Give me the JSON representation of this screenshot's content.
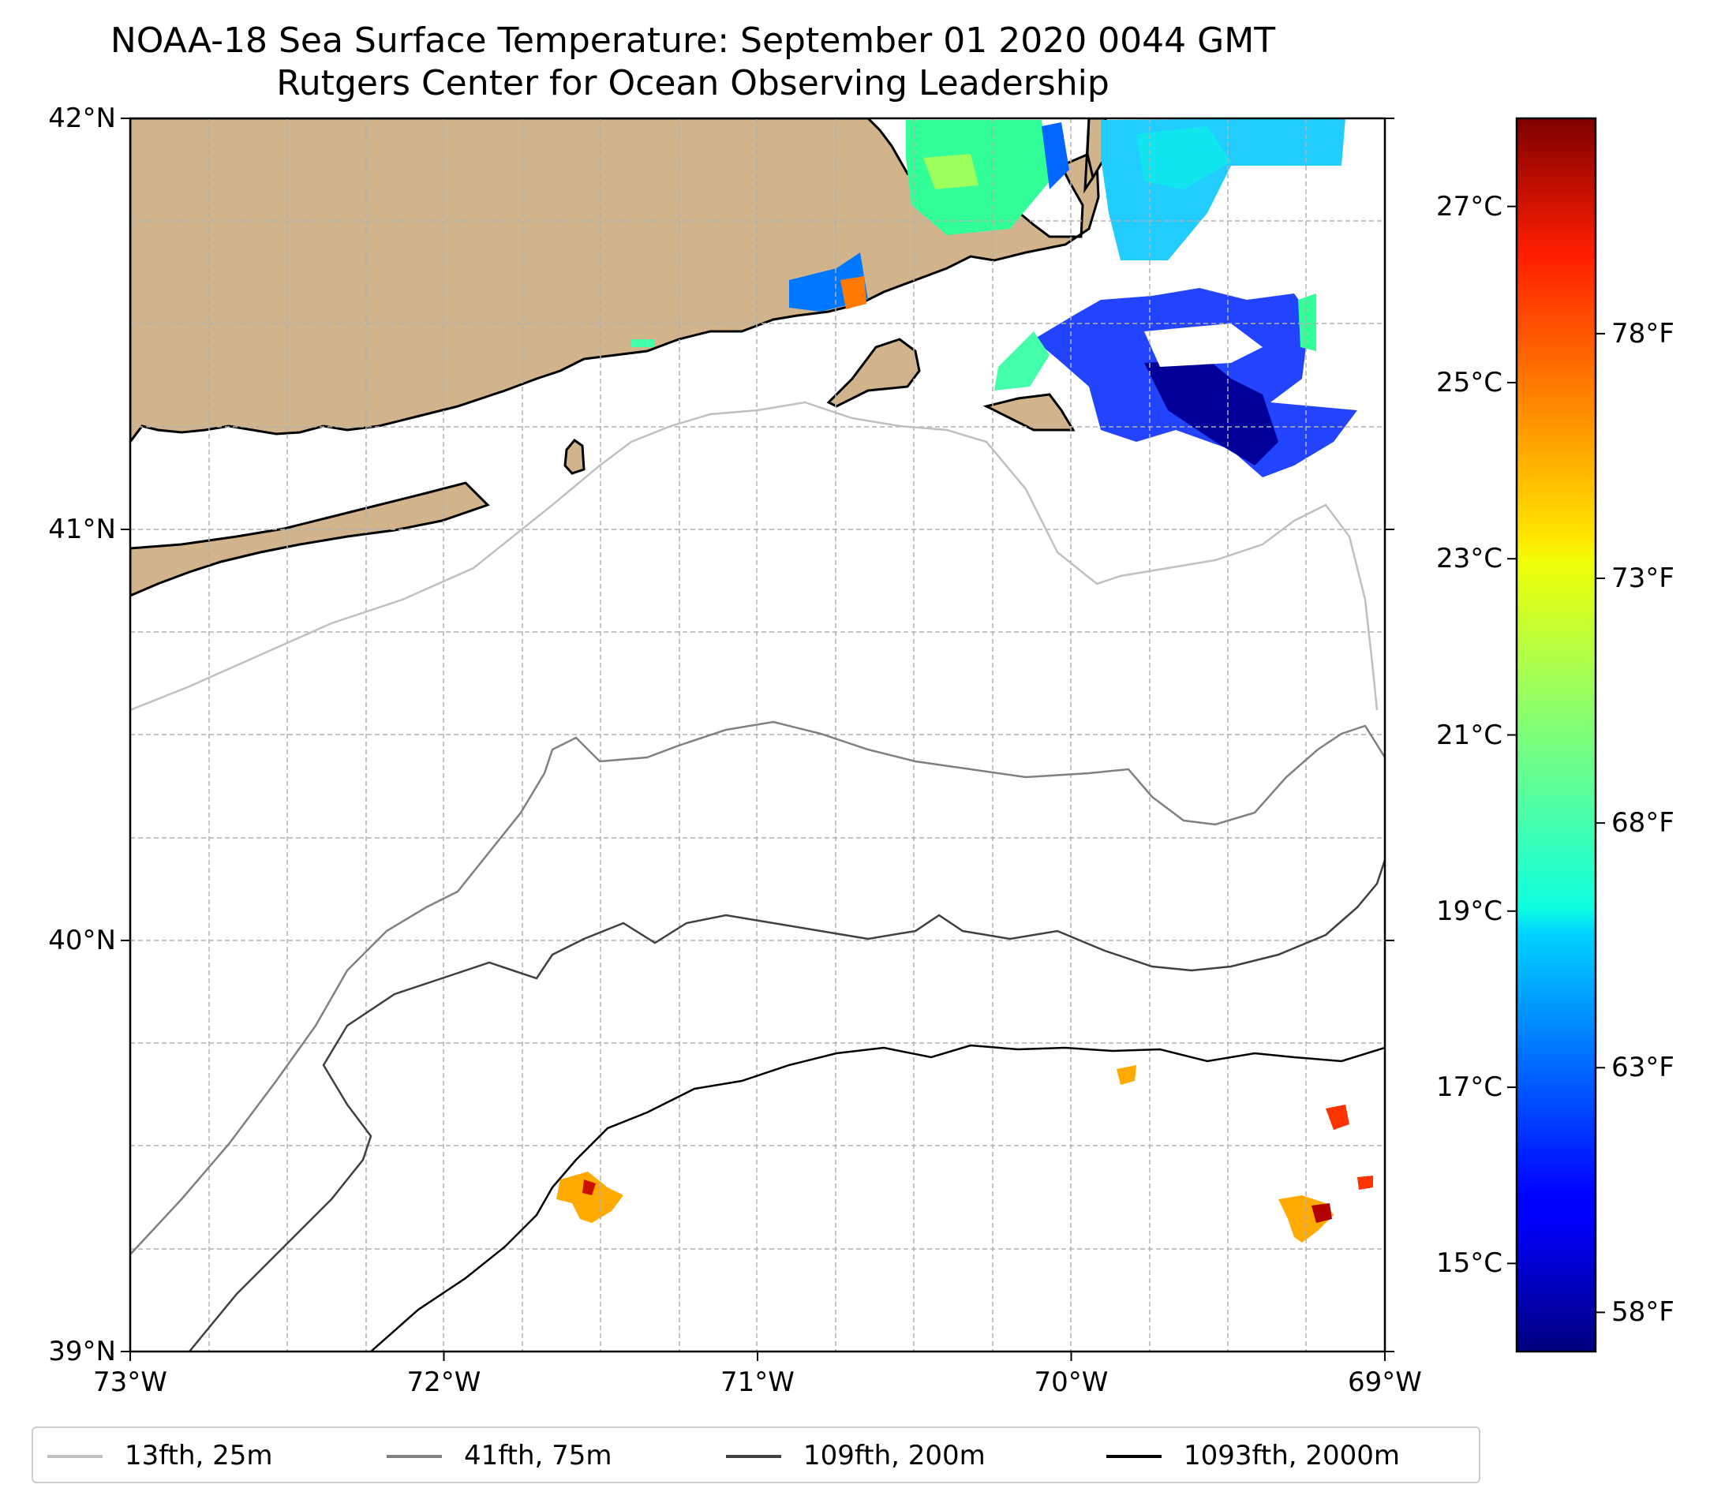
{
  "header": {
    "title_line1": "NOAA-18 Sea Surface Temperature: September 01 2020 0044 GMT",
    "title_line2": "Rutgers Center for Ocean Observing Leadership"
  },
  "map": {
    "extent": {
      "lon_min": -73,
      "lon_max": -69,
      "lat_min": 39,
      "lat_max": 42
    },
    "lat_ticks": [
      {
        "value": 42,
        "label": "42°N"
      },
      {
        "value": 41,
        "label": "41°N"
      },
      {
        "value": 40,
        "label": "40°N"
      },
      {
        "value": 39,
        "label": "39°N"
      }
    ],
    "lon_ticks": [
      {
        "value": -73,
        "label": "73°W"
      },
      {
        "value": -72,
        "label": "72°W"
      },
      {
        "value": -71,
        "label": "71°W"
      },
      {
        "value": -70,
        "label": "70°W"
      },
      {
        "value": -69,
        "label": "69°W"
      }
    ],
    "gridlines": "dashed",
    "land_color": "#d2b48c",
    "water_color": "#ffffff"
  },
  "colorbar": {
    "colormap": "jet",
    "range_celsius": [
      14,
      28
    ],
    "celsius_ticks": [
      {
        "value": 27,
        "label": "27°C"
      },
      {
        "value": 25,
        "label": "25°C"
      },
      {
        "value": 23,
        "label": "23°C"
      },
      {
        "value": 21,
        "label": "21°C"
      },
      {
        "value": 19,
        "label": "19°C"
      },
      {
        "value": 17,
        "label": "17°C"
      },
      {
        "value": 15,
        "label": "15°C"
      }
    ],
    "fahrenheit_ticks": [
      {
        "value": 78,
        "label": "78°F"
      },
      {
        "value": 73,
        "label": "73°F"
      },
      {
        "value": 68,
        "label": "68°F"
      },
      {
        "value": 63,
        "label": "63°F"
      },
      {
        "value": 58,
        "label": "58°F"
      }
    ]
  },
  "legend": {
    "items": [
      {
        "label": "13fth, 25m",
        "color": "#c0c0c0"
      },
      {
        "label": "41fth, 75m",
        "color": "#808080"
      },
      {
        "label": "109fth, 200m",
        "color": "#404040"
      },
      {
        "label": "1093fth, 2000m",
        "color": "#000000"
      }
    ]
  }
}
